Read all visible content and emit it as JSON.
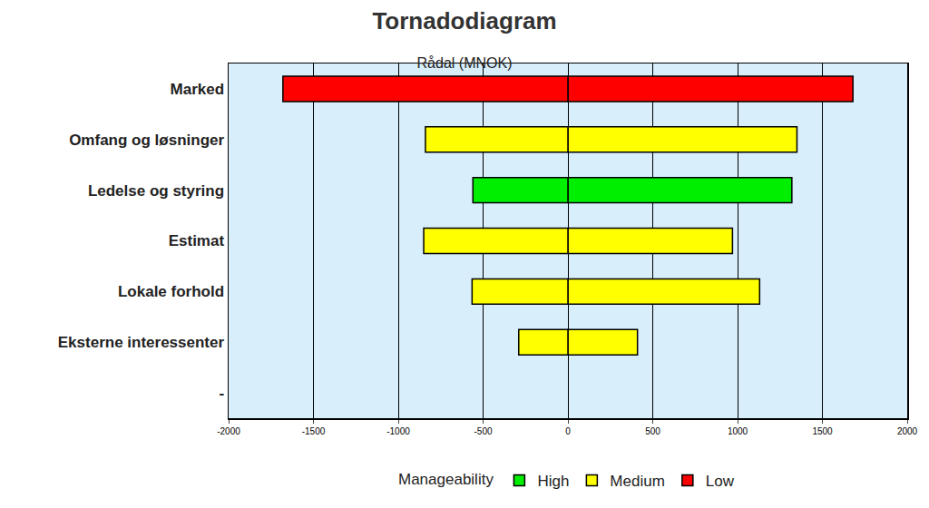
{
  "chart_data": {
    "type": "bar",
    "orientation": "horizontal",
    "stacked": true,
    "title": "Tornadodiagram",
    "subtitle": "Rådal (MNOK)",
    "categories": [
      "Marked",
      "Omfang og løsninger",
      "Ledelse og styring",
      "Estimat",
      "Lokale forhold",
      "Eksterne interessenter",
      "-"
    ],
    "legend_title": "Manageability",
    "legend": "bottom",
    "series": [
      {
        "name": "High",
        "color": "#00ee00",
        "values": [
          null,
          null,
          1320,
          null,
          null,
          null,
          null
        ],
        "low_values": [
          null,
          null,
          -560,
          null,
          null,
          null,
          null
        ]
      },
      {
        "name": "Medium",
        "color": "#ffff00",
        "values": [
          null,
          1350,
          null,
          970,
          1130,
          410,
          null
        ],
        "low_values": [
          null,
          -840,
          null,
          -850,
          -565,
          -290,
          null
        ]
      },
      {
        "name": "Low",
        "color": "#ff0000",
        "values": [
          1680,
          null,
          null,
          null,
          null,
          null,
          null
        ],
        "low_values": [
          -1680,
          null,
          null,
          null,
          null,
          null,
          null
        ]
      }
    ],
    "xlim": [
      -2000,
      2000
    ],
    "xticks": [
      -2000,
      -1500,
      -1000,
      -500,
      0,
      500,
      1000,
      1500,
      2000
    ],
    "grid": true
  }
}
